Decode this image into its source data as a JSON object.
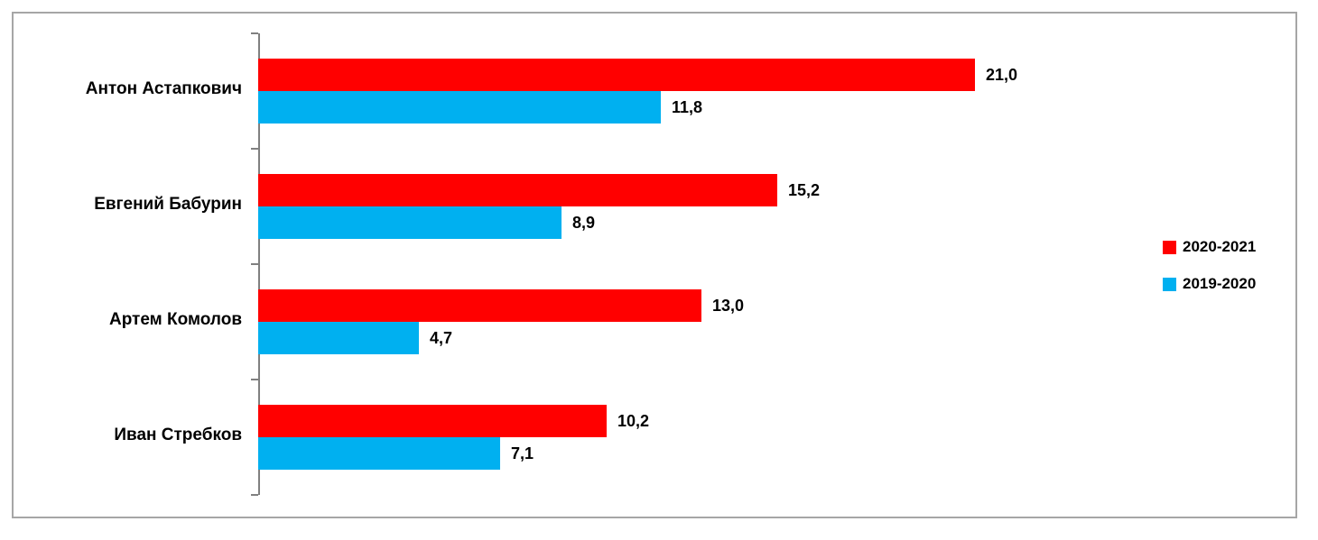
{
  "chart_data": {
    "type": "bar",
    "orientation": "horizontal",
    "title": "",
    "categories": [
      "Антон Астапкович",
      "Евгений Бабурин",
      "Артем Комолов",
      "Иван Стребков"
    ],
    "series": [
      {
        "name": "2020-2021",
        "color": "#ff0000",
        "values": [
          21.0,
          15.2,
          13.0,
          10.2
        ],
        "value_labels": [
          "21,0",
          "15,2",
          "13,0",
          "10,2"
        ]
      },
      {
        "name": "2019-2020",
        "color": "#00b0f0",
        "values": [
          11.8,
          8.9,
          4.7,
          7.1
        ],
        "value_labels": [
          "11,8",
          "8,9",
          "4,7",
          "7,1"
        ]
      }
    ],
    "legend": {
      "position": "right",
      "entries": [
        "2020-2021",
        "2019-2020"
      ]
    },
    "grid": false,
    "value_axis_visible": false,
    "category_axis_visible": true,
    "decimal_separator": ","
  },
  "colors": {
    "series_2020_2021": "#ff0000",
    "series_2019_2020": "#00b0f0",
    "axis": "#808080",
    "frame_border": "#a6a6a6",
    "text": "#000000",
    "background": "#ffffff"
  }
}
